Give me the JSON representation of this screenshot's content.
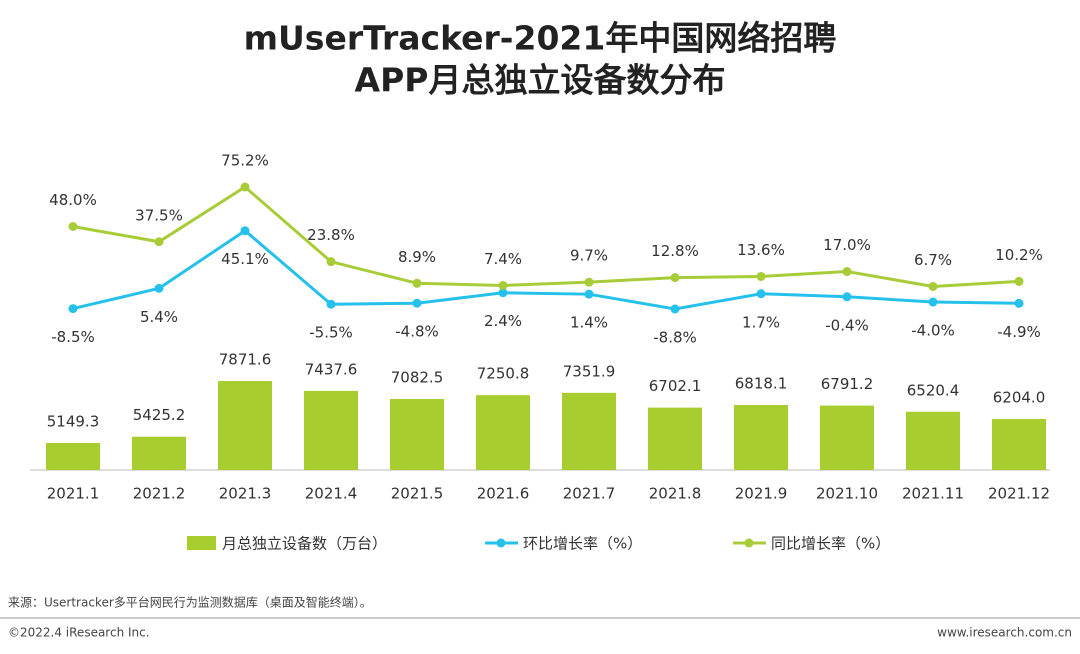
{
  "chart_data": {
    "type": "bar",
    "title": [
      "mUserTracker-2021年中国网络招聘",
      "APP月总独立设备数分布"
    ],
    "categories": [
      "2021.1",
      "2021.2",
      "2021.3",
      "2021.4",
      "2021.5",
      "2021.6",
      "2021.7",
      "2021.8",
      "2021.9",
      "2021.10",
      "2021.11",
      "2021.12"
    ],
    "series": [
      {
        "name": "月总独立设备数（万台）",
        "type": "bar",
        "color": "#a8cd2f",
        "values": [
          5149.3,
          5425.2,
          7871.6,
          7437.6,
          7082.5,
          7250.8,
          7351.9,
          6702.1,
          6818.1,
          6791.2,
          6520.4,
          6204.0
        ],
        "value_labels": [
          "5149.3",
          "5425.2",
          "7871.6",
          "7437.6",
          "7082.5",
          "7250.8",
          "7351.9",
          "6702.1",
          "6818.1",
          "6791.2",
          "6520.4",
          "6204.0"
        ]
      },
      {
        "name": "环比增长率（%）",
        "type": "line",
        "axis": "y2",
        "color": "#26c1ea",
        "values": [
          -8.5,
          5.4,
          45.1,
          -5.5,
          -4.8,
          2.4,
          1.4,
          -8.8,
          1.7,
          -0.4,
          -4.0,
          -4.9
        ],
        "value_labels": [
          "-8.5%",
          "5.4%",
          "45.1%",
          "-5.5%",
          "-4.8%",
          "2.4%",
          "1.4%",
          "-8.8%",
          "1.7%",
          "-0.4%",
          "-4.0%",
          "-4.9%"
        ]
      },
      {
        "name": "同比增长率（%）",
        "type": "line",
        "axis": "y2",
        "color": "#a8cb38",
        "values": [
          48.0,
          37.5,
          75.2,
          23.8,
          8.9,
          7.4,
          9.7,
          12.8,
          13.6,
          17.0,
          6.7,
          10.2
        ],
        "value_labels": [
          "48.0%",
          "37.5%",
          "75.2%",
          "23.8%",
          "8.9%",
          "7.4%",
          "9.7%",
          "12.8%",
          "13.6%",
          "17.0%",
          "6.7%",
          "10.2%"
        ]
      }
    ],
    "source": "来源：Usertracker多平台网民行为监测数据库（桌面及智能终端）。",
    "copyright": "©2022.4 iResearch Inc.",
    "website": "www.iresearch.com.cn"
  }
}
